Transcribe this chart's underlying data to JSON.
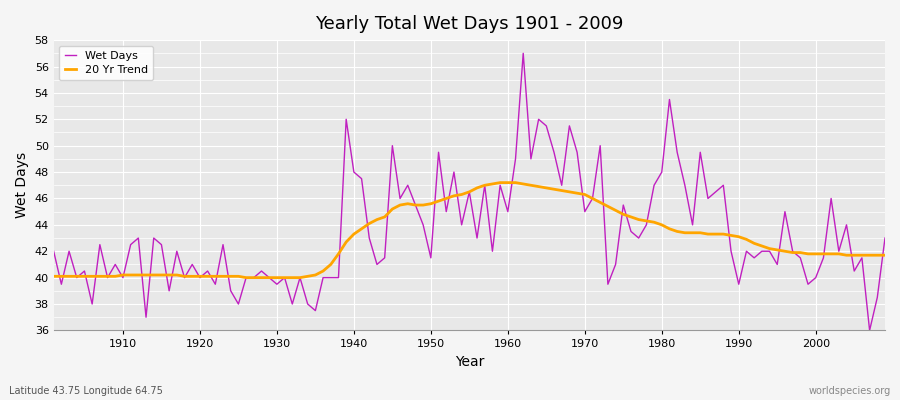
{
  "title": "Yearly Total Wet Days 1901 - 2009",
  "xlabel": "Year",
  "ylabel": "Wet Days",
  "subtitle": "Latitude 43.75 Longitude 64.75",
  "watermark": "worldspecies.org",
  "ylim": [
    36,
    58
  ],
  "xlim": [
    1901,
    2009
  ],
  "wet_days_color": "#c020c0",
  "trend_color": "#ffa500",
  "bg_color": "#e8e8e8",
  "fig_color": "#f5f5f5",
  "years": [
    1901,
    1902,
    1903,
    1904,
    1905,
    1906,
    1907,
    1908,
    1909,
    1910,
    1911,
    1912,
    1913,
    1914,
    1915,
    1916,
    1917,
    1918,
    1919,
    1920,
    1921,
    1922,
    1923,
    1924,
    1925,
    1926,
    1927,
    1928,
    1929,
    1930,
    1931,
    1932,
    1933,
    1934,
    1935,
    1936,
    1937,
    1938,
    1939,
    1940,
    1941,
    1942,
    1943,
    1944,
    1945,
    1946,
    1947,
    1948,
    1949,
    1950,
    1951,
    1952,
    1953,
    1954,
    1955,
    1956,
    1957,
    1958,
    1959,
    1960,
    1961,
    1962,
    1963,
    1964,
    1965,
    1966,
    1967,
    1968,
    1969,
    1970,
    1971,
    1972,
    1973,
    1974,
    1975,
    1976,
    1977,
    1978,
    1979,
    1980,
    1981,
    1982,
    1983,
    1984,
    1985,
    1986,
    1987,
    1988,
    1989,
    1990,
    1991,
    1992,
    1993,
    1994,
    1995,
    1996,
    1997,
    1998,
    1999,
    2000,
    2001,
    2002,
    2003,
    2004,
    2005,
    2006,
    2007,
    2008,
    2009
  ],
  "wet_days": [
    42,
    39.5,
    42,
    40,
    40.5,
    38,
    42.5,
    40,
    41,
    40,
    42.5,
    43,
    37,
    43,
    42.5,
    39,
    42,
    40,
    41,
    40,
    40.5,
    39.5,
    42.5,
    39,
    38,
    40,
    40,
    40.5,
    40,
    39.5,
    40,
    38,
    40,
    38,
    37.5,
    40,
    40,
    40,
    52,
    48,
    47.5,
    43,
    41,
    41.5,
    50,
    46,
    47,
    45.5,
    44,
    41.5,
    49.5,
    45,
    48,
    44,
    46.5,
    43,
    47,
    42,
    47,
    45,
    49,
    57,
    49,
    52,
    51.5,
    49.5,
    47,
    51.5,
    49.5,
    45,
    46,
    50,
    39.5,
    41,
    45.5,
    43.5,
    43,
    44,
    47,
    48,
    53.5,
    49.5,
    47,
    44,
    49.5,
    46,
    46.5,
    47,
    42,
    39.5,
    42,
    41.5,
    42,
    42,
    41,
    45,
    42,
    41.5,
    39.5,
    40,
    41.5,
    46,
    42,
    44,
    40.5,
    41.5,
    36,
    38.5,
    43
  ],
  "trend_years": [
    1901,
    1902,
    1903,
    1904,
    1905,
    1906,
    1907,
    1908,
    1909,
    1910,
    1911,
    1912,
    1913,
    1914,
    1915,
    1916,
    1917,
    1918,
    1919,
    1920,
    1921,
    1922,
    1923,
    1924,
    1925,
    1926,
    1927,
    1928,
    1929,
    1930,
    1931,
    1932,
    1933,
    1934,
    1935,
    1936,
    1937,
    1938,
    1939,
    1940,
    1941,
    1942,
    1943,
    1944,
    1945,
    1946,
    1947,
    1948,
    1949,
    1950,
    1951,
    1952,
    1953,
    1954,
    1955,
    1956,
    1957,
    1958,
    1959,
    1960,
    1961,
    1962,
    1963,
    1964,
    1965,
    1966,
    1967,
    1968,
    1969,
    1970,
    1971,
    1972,
    1973,
    1974,
    1975,
    1976,
    1977,
    1978,
    1979,
    1980,
    1981,
    1982,
    1983,
    1984,
    1985,
    1986,
    1987,
    1988,
    1989,
    1990,
    1991,
    1992,
    1993,
    1994,
    1995,
    1996,
    1997,
    1998,
    1999,
    2000,
    2001,
    2002,
    2003,
    2004,
    2005,
    2006,
    2007,
    2008,
    2009
  ],
  "trend_values": [
    40.1,
    40.1,
    40.1,
    40.1,
    40.1,
    40.1,
    40.1,
    40.1,
    40.1,
    40.2,
    40.2,
    40.2,
    40.2,
    40.2,
    40.2,
    40.2,
    40.2,
    40.1,
    40.1,
    40.1,
    40.1,
    40.1,
    40.1,
    40.1,
    40.1,
    40.0,
    40.0,
    40.0,
    40.0,
    40.0,
    40.0,
    40.0,
    40.0,
    40.1,
    40.2,
    40.5,
    41.0,
    41.8,
    42.7,
    43.3,
    43.7,
    44.1,
    44.4,
    44.6,
    45.2,
    45.5,
    45.6,
    45.5,
    45.5,
    45.6,
    45.8,
    46.0,
    46.2,
    46.3,
    46.5,
    46.8,
    47.0,
    47.1,
    47.2,
    47.2,
    47.2,
    47.1,
    47.0,
    46.9,
    46.8,
    46.7,
    46.6,
    46.5,
    46.4,
    46.3,
    46.0,
    45.7,
    45.4,
    45.1,
    44.8,
    44.6,
    44.4,
    44.3,
    44.2,
    44.0,
    43.7,
    43.5,
    43.4,
    43.4,
    43.4,
    43.3,
    43.3,
    43.3,
    43.2,
    43.1,
    42.9,
    42.6,
    42.4,
    42.2,
    42.1,
    42.0,
    41.9,
    41.9,
    41.8,
    41.8,
    41.8,
    41.8,
    41.8,
    41.7,
    41.7,
    41.7,
    41.7,
    41.7,
    41.7
  ]
}
